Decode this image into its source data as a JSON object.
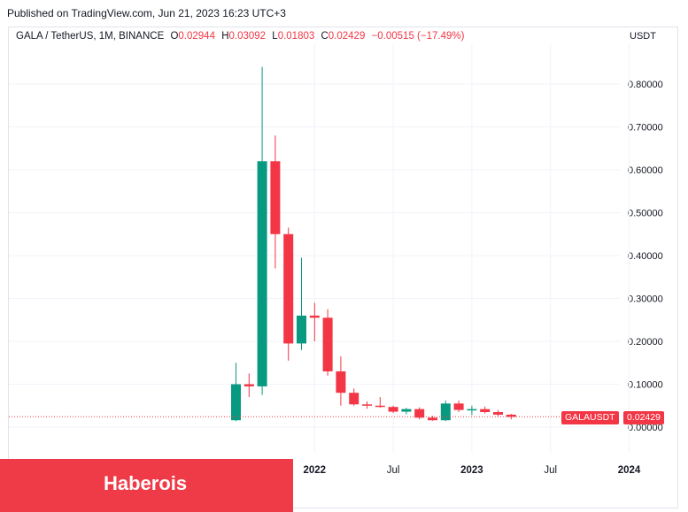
{
  "header": {
    "published": "Published on TradingView.com, Jun 21, 2023 16:23 UTC+3"
  },
  "legend": {
    "symbol": "GALA / TetherUS, 1M, BINANCE",
    "o_label": "O",
    "o_value": "0.02944",
    "h_label": "H",
    "h_value": "0.03092",
    "l_label": "L",
    "l_value": "0.01803",
    "c_label": "C",
    "c_value": "0.02429",
    "change": "−0.00515 (−17.49%)"
  },
  "price_axis": {
    "unit": "USDT"
  },
  "last_price": {
    "symbol_tag": "GALAUSDT",
    "value_tag": "0.02429"
  },
  "banner": {
    "text": "Haberois"
  },
  "colors": {
    "up": "#089981",
    "down": "#f23645",
    "grid": "#f0f3fa",
    "banner": "#ef3b47"
  },
  "chart_data": {
    "type": "candlestick",
    "interval": "1M",
    "ylim": [
      -0.05,
      0.9
    ],
    "y_ticks": [
      "0.00000",
      "0.10000",
      "0.20000",
      "0.30000",
      "0.40000",
      "0.50000",
      "0.60000",
      "0.70000",
      "0.80000"
    ],
    "y_tick_values": [
      0,
      0.1,
      0.2,
      0.3,
      0.4,
      0.5,
      0.6,
      0.7,
      0.8
    ],
    "x_ticks": [
      {
        "label": "2022",
        "month_index": 6
      },
      {
        "label": "Jul",
        "month_index": 12
      },
      {
        "label": "2023",
        "month_index": 18
      },
      {
        "label": "Jul",
        "month_index": 24
      },
      {
        "label": "2024",
        "month_index": 30
      }
    ],
    "candles": [
      {
        "month": "2021-06",
        "open": 0.016,
        "high": 0.15,
        "low": 0.014,
        "close": 0.1
      },
      {
        "month": "2021-07",
        "open": 0.1,
        "high": 0.125,
        "low": 0.07,
        "close": 0.095
      },
      {
        "month": "2021-08",
        "open": 0.095,
        "high": 0.84,
        "low": 0.075,
        "close": 0.62
      },
      {
        "month": "2021-09",
        "open": 0.62,
        "high": 0.68,
        "low": 0.37,
        "close": 0.45
      },
      {
        "month": "2021-10",
        "open": 0.45,
        "high": 0.465,
        "low": 0.155,
        "close": 0.195
      },
      {
        "month": "2021-11",
        "open": 0.195,
        "high": 0.395,
        "low": 0.18,
        "close": 0.26
      },
      {
        "month": "2021-12",
        "open": 0.26,
        "high": 0.29,
        "low": 0.2,
        "close": 0.255
      },
      {
        "month": "2022-01",
        "open": 0.255,
        "high": 0.275,
        "low": 0.12,
        "close": 0.13
      },
      {
        "month": "2022-02",
        "open": 0.13,
        "high": 0.165,
        "low": 0.05,
        "close": 0.08
      },
      {
        "month": "2022-03",
        "open": 0.08,
        "high": 0.09,
        "low": 0.05,
        "close": 0.053
      },
      {
        "month": "2022-04",
        "open": 0.053,
        "high": 0.06,
        "low": 0.043,
        "close": 0.05
      },
      {
        "month": "2022-05",
        "open": 0.05,
        "high": 0.07,
        "low": 0.045,
        "close": 0.047
      },
      {
        "month": "2022-06",
        "open": 0.047,
        "high": 0.05,
        "low": 0.033,
        "close": 0.036
      },
      {
        "month": "2022-07",
        "open": 0.036,
        "high": 0.045,
        "low": 0.03,
        "close": 0.042
      },
      {
        "month": "2022-08",
        "open": 0.042,
        "high": 0.046,
        "low": 0.018,
        "close": 0.022
      },
      {
        "month": "2022-09",
        "open": 0.022,
        "high": 0.026,
        "low": 0.015,
        "close": 0.016
      },
      {
        "month": "2022-10",
        "open": 0.016,
        "high": 0.062,
        "low": 0.014,
        "close": 0.055
      },
      {
        "month": "2022-11",
        "open": 0.055,
        "high": 0.062,
        "low": 0.035,
        "close": 0.04
      },
      {
        "month": "2022-12",
        "open": 0.04,
        "high": 0.05,
        "low": 0.028,
        "close": 0.042
      },
      {
        "month": "2023-01",
        "open": 0.042,
        "high": 0.048,
        "low": 0.032,
        "close": 0.035
      },
      {
        "month": "2023-02",
        "open": 0.035,
        "high": 0.04,
        "low": 0.025,
        "close": 0.029
      },
      {
        "month": "2023-03",
        "open": 0.029,
        "high": 0.031,
        "low": 0.018,
        "close": 0.024
      }
    ],
    "last_close": 0.02429
  }
}
